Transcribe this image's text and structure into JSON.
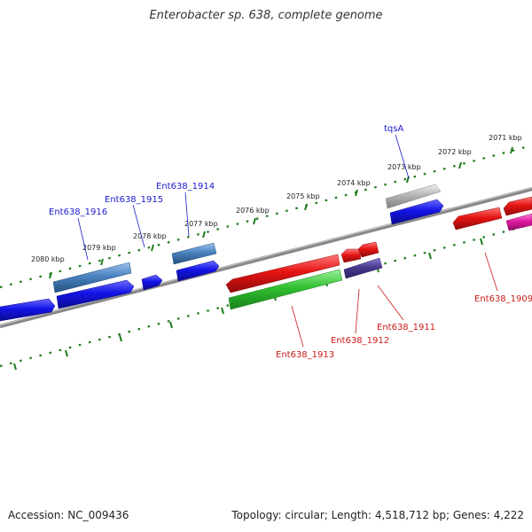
{
  "title": "Enterobacter sp. 638, complete genome",
  "footer": {
    "accession": "Accession: NC_009436",
    "summary": "Topology: circular; Length: 4,518,712 bp; Genes: 4,222"
  },
  "colors": {
    "plus_strand_label": "#1a1acc",
    "minus_strand_label": "#cc1a1a",
    "tick": "#1a7a1a",
    "backbone": "#888888",
    "gene_blue": "#1414e6",
    "gene_steelblue": "#4a82c0",
    "gene_red": "#e61414",
    "gene_green": "#30c030",
    "gene_purple": "#4a3a90",
    "gene_grey": "#b4b4b4",
    "gene_pink": "#e01aa0"
  },
  "kbp_labels": [
    "2071 kbp",
    "2072 kbp",
    "2073 kbp",
    "2074 kbp",
    "2075 kbp",
    "2076 kbp",
    "2077 kbp",
    "2078 kbp",
    "2079 kbp",
    "2080 kbp"
  ],
  "gene_labels": {
    "plus": [
      "tqsA",
      "Ent638_1914",
      "Ent638_1915",
      "Ent638_1916"
    ],
    "minus": [
      "Ent638_1909",
      "Ent638_1911",
      "Ent638_1912",
      "Ent638_1913"
    ]
  }
}
